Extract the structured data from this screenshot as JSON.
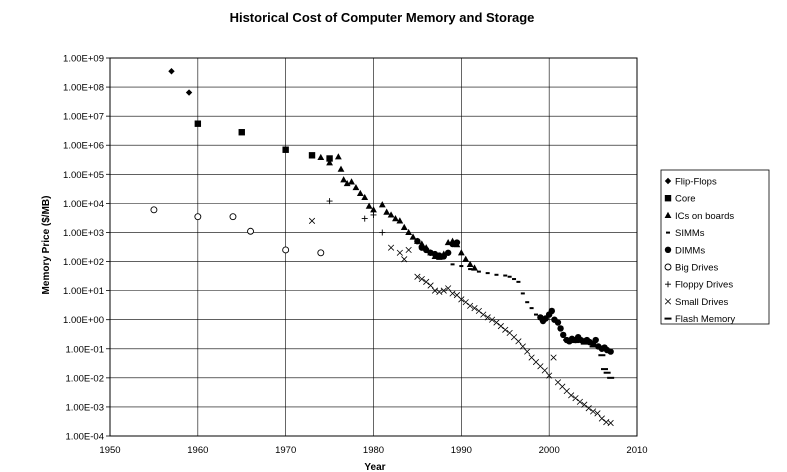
{
  "chart_data": {
    "type": "scatter",
    "title": "Historical Cost of Computer Memory and Storage",
    "xlabel": "Year",
    "ylabel": "Memory Price ($/MB)",
    "y_scale": "log",
    "xlim": [
      1950,
      2010
    ],
    "ylim": [
      0.0001,
      1000000000
    ],
    "x_ticks": [
      "1950",
      "1960",
      "1970",
      "1980",
      "1990",
      "2000",
      "2010"
    ],
    "y_ticks": [
      "1.00E+09",
      "1.00E+08",
      "1.00E+07",
      "1.00E+06",
      "1.00E+05",
      "1.00E+04",
      "1.00E+03",
      "1.00E+02",
      "1.00E+01",
      "1.00E+00",
      "1.00E-01",
      "1.00E-02",
      "1.00E-03",
      "1.00E-04"
    ],
    "grid": "horizontal and vertical major gridlines",
    "legend_position": "right",
    "series": [
      {
        "name": "Flip-Flops",
        "marker": "diamond",
        "points": [
          [
            1957,
            350000000
          ],
          [
            1959,
            65000000
          ]
        ]
      },
      {
        "name": "Core",
        "marker": "square",
        "points": [
          [
            1960,
            5500000
          ],
          [
            1965,
            2800000
          ],
          [
            1970,
            700000
          ],
          [
            1973,
            450000
          ],
          [
            1975,
            350000
          ]
        ]
      },
      {
        "name": "ICs on boards",
        "marker": "triangle",
        "points": [
          [
            1974,
            380000
          ],
          [
            1975,
            250000
          ],
          [
            1976,
            400000
          ],
          [
            1976.3,
            150000
          ],
          [
            1976.6,
            65000
          ],
          [
            1977,
            48000
          ],
          [
            1977.5,
            55000
          ],
          [
            1978,
            35000
          ],
          [
            1978.5,
            22000
          ],
          [
            1979,
            16000
          ],
          [
            1979.5,
            8000
          ],
          [
            1980,
            6000
          ],
          [
            1981,
            9000
          ],
          [
            1981.5,
            5000
          ],
          [
            1982,
            4000
          ],
          [
            1982.5,
            3000
          ],
          [
            1983,
            2500
          ],
          [
            1983.5,
            1500
          ],
          [
            1984,
            1000
          ],
          [
            1984.5,
            700
          ],
          [
            1985,
            500
          ],
          [
            1985.5,
            400
          ],
          [
            1986,
            300
          ],
          [
            1986.5,
            200
          ],
          [
            1987,
            150
          ],
          [
            1987.5,
            140
          ],
          [
            1988,
            180
          ],
          [
            1988.5,
            450
          ],
          [
            1989,
            500
          ],
          [
            1989.5,
            380
          ],
          [
            1990,
            200
          ],
          [
            1990.5,
            120
          ],
          [
            1991,
            80
          ],
          [
            1991.5,
            60
          ]
        ]
      },
      {
        "name": "SIMMs",
        "marker": "dash",
        "points": [
          [
            1989,
            80
          ],
          [
            1990,
            70
          ],
          [
            1991,
            55
          ],
          [
            1992,
            45
          ],
          [
            1993,
            40
          ],
          [
            1994,
            35
          ],
          [
            1995,
            33
          ],
          [
            1995.5,
            30
          ],
          [
            1996,
            25
          ],
          [
            1996.5,
            20
          ],
          [
            1997,
            8
          ],
          [
            1997.5,
            4
          ],
          [
            1998,
            2.5
          ],
          [
            1998.5,
            1.5
          ],
          [
            1999,
            1.2
          ],
          [
            1999.5,
            1.0
          ]
        ]
      },
      {
        "name": "DIMMs",
        "marker": "circle",
        "points": [
          [
            1985,
            500
          ],
          [
            1985.5,
            300
          ],
          [
            1986,
            250
          ],
          [
            1986.5,
            200
          ],
          [
            1987,
            180
          ],
          [
            1987.5,
            160
          ],
          [
            1988,
            150
          ],
          [
            1988.5,
            200
          ],
          [
            1989,
            400
          ],
          [
            1989.5,
            450
          ],
          [
            1999,
            1.2
          ],
          [
            1999.3,
            0.9
          ],
          [
            1999.6,
            1.1
          ],
          [
            2000,
            1.5
          ],
          [
            2000.3,
            2.0
          ],
          [
            2000.6,
            1.0
          ],
          [
            2001,
            0.8
          ],
          [
            2001.3,
            0.5
          ],
          [
            2001.6,
            0.3
          ],
          [
            2002,
            0.2
          ],
          [
            2002.3,
            0.18
          ],
          [
            2002.6,
            0.22
          ],
          [
            2003,
            0.2
          ],
          [
            2003.3,
            0.25
          ],
          [
            2003.6,
            0.2
          ],
          [
            2004,
            0.18
          ],
          [
            2004.3,
            0.2
          ],
          [
            2004.6,
            0.17
          ],
          [
            2005,
            0.15
          ],
          [
            2005.3,
            0.2
          ],
          [
            2005.6,
            0.12
          ],
          [
            2006,
            0.1
          ],
          [
            2006.3,
            0.11
          ],
          [
            2006.6,
            0.09
          ],
          [
            2007,
            0.08
          ]
        ]
      },
      {
        "name": "Big Drives",
        "marker": "open-circle",
        "points": [
          [
            1955,
            6000
          ],
          [
            1960,
            3500
          ],
          [
            1964,
            3500
          ],
          [
            1966,
            1100
          ],
          [
            1970,
            250
          ],
          [
            1974,
            200
          ]
        ]
      },
      {
        "name": "Floppy Drives",
        "marker": "plus",
        "points": [
          [
            1975,
            12000
          ],
          [
            1979,
            3000
          ],
          [
            1980,
            4000
          ],
          [
            1981,
            1000
          ]
        ]
      },
      {
        "name": "Small Drives",
        "marker": "x",
        "points": [
          [
            1973,
            2500
          ],
          [
            1982,
            300
          ],
          [
            1983,
            200
          ],
          [
            1983.5,
            120
          ],
          [
            1984,
            250
          ],
          [
            1985,
            30
          ],
          [
            1985.5,
            25
          ],
          [
            1986,
            20
          ],
          [
            1986.5,
            15
          ],
          [
            1987,
            10
          ],
          [
            1987.5,
            9
          ],
          [
            1988,
            10
          ],
          [
            1988.5,
            12
          ],
          [
            1989,
            8
          ],
          [
            1989.5,
            7
          ],
          [
            1990,
            5
          ],
          [
            1990.5,
            4
          ],
          [
            1991,
            3
          ],
          [
            1991.5,
            2.5
          ],
          [
            1992,
            2
          ],
          [
            1992.5,
            1.5
          ],
          [
            1993,
            1.2
          ],
          [
            1993.5,
            1.0
          ],
          [
            1994,
            0.8
          ],
          [
            1994.5,
            0.6
          ],
          [
            1995,
            0.45
          ],
          [
            1995.5,
            0.35
          ],
          [
            1996,
            0.25
          ],
          [
            1996.5,
            0.18
          ],
          [
            1997,
            0.12
          ],
          [
            1997.5,
            0.08
          ],
          [
            1998,
            0.05
          ],
          [
            1998.5,
            0.035
          ],
          [
            1999,
            0.025
          ],
          [
            1999.5,
            0.018
          ],
          [
            2000,
            0.012
          ],
          [
            2000.5,
            0.05
          ],
          [
            2001,
            0.007
          ],
          [
            2001.5,
            0.005
          ],
          [
            2002,
            0.0035
          ],
          [
            2002.5,
            0.0025
          ],
          [
            2003,
            0.002
          ],
          [
            2003.5,
            0.0015
          ],
          [
            2004,
            0.0012
          ],
          [
            2004.5,
            0.0009
          ],
          [
            2005,
            0.0007
          ],
          [
            2005.5,
            0.0006
          ],
          [
            2006,
            0.0004
          ],
          [
            2006.5,
            0.0003
          ],
          [
            2007,
            0.00028
          ]
        ]
      },
      {
        "name": "Flash Memory",
        "marker": "bar",
        "points": [
          [
            2002,
            0.2
          ],
          [
            2003,
            0.17
          ],
          [
            2004,
            0.15
          ],
          [
            2005,
            0.12
          ],
          [
            2006,
            0.06
          ],
          [
            2006.3,
            0.02
          ],
          [
            2006.6,
            0.015
          ],
          [
            2007,
            0.01
          ]
        ]
      }
    ]
  }
}
